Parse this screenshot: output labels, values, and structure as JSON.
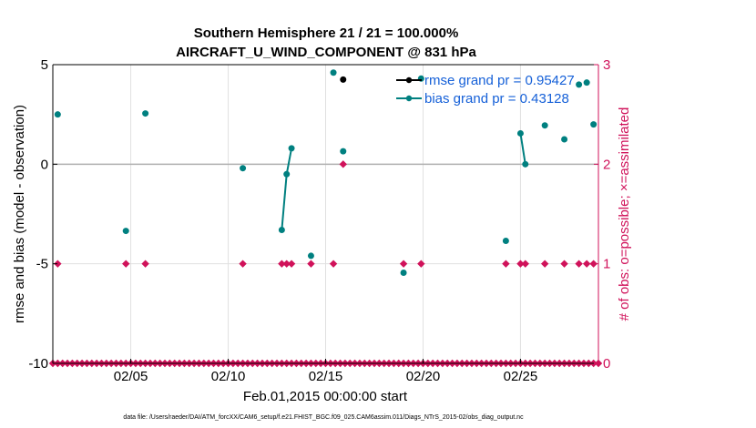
{
  "chart_data": {
    "type": "line",
    "title_line1": "Southern Hemisphere 21 / 21 = 100.000%",
    "title_line2": "AIRCRAFT_U_WIND_COMPONENT @ 831 hPa",
    "ylabel": "rmse and bias (model - observation)",
    "ylabel_right": "# of obs: o=possible; ×=assimilated",
    "xlabel": "Feb.01,2015 00:00:00 start",
    "footer": "data file: /Users/raeder/DAI/ATM_forcXX/CAM6_setup/f.e21.FHIST_BGC.f09_025.CAM6assim.011/Diags_NTrS_2015-02/obs_diag_output.nc",
    "xlim": [
      1.0,
      29.0
    ],
    "ylim": [
      -10,
      5
    ],
    "ylim_right": [
      0,
      3
    ],
    "x_ticks": [
      5,
      10,
      15,
      20,
      25
    ],
    "x_tick_labels": [
      "02/05",
      "02/10",
      "02/15",
      "02/20",
      "02/25"
    ],
    "y_ticks": [
      -10,
      -5,
      0,
      5
    ],
    "y_tick_labels": [
      "-10",
      "-5",
      "0",
      "5"
    ],
    "y_ticks_right": [
      0,
      1,
      2,
      3
    ],
    "y_tick_labels_right": [
      "0",
      "1",
      "2",
      "3"
    ],
    "zero_line": 0,
    "grid": true,
    "legend": [
      {
        "label": "rmse grand pr = 0.95427",
        "color": "#000000"
      },
      {
        "label": "bias grand pr = 0.43128",
        "color": "#008080"
      }
    ],
    "series": [
      {
        "name": "rmse",
        "color": "#000000",
        "points": [
          [
            15.9,
            4.25
          ]
        ]
      },
      {
        "name": "bias",
        "color": "#008080",
        "points": [
          [
            1.25,
            2.5
          ],
          [
            4.75,
            -3.35
          ],
          [
            5.75,
            2.55
          ],
          [
            10.75,
            -0.2
          ],
          [
            12.75,
            -3.3
          ],
          [
            13.0,
            -0.5
          ],
          [
            13.25,
            0.8
          ],
          [
            14.25,
            -4.6
          ],
          [
            15.4,
            4.6
          ],
          [
            15.9,
            0.65
          ],
          [
            19.0,
            -5.45
          ],
          [
            19.9,
            4.3
          ],
          [
            24.25,
            -3.85
          ],
          [
            25.0,
            1.55
          ],
          [
            25.25,
            0.0
          ],
          [
            26.25,
            1.95
          ],
          [
            27.25,
            1.25
          ],
          [
            28.0,
            4.0
          ],
          [
            28.4,
            4.1
          ],
          [
            28.75,
            2.0
          ]
        ]
      }
    ],
    "obs_possible_times": [
      1.25,
      4.75,
      5.75,
      10.75,
      12.75,
      13.0,
      13.25,
      14.25,
      15.4,
      15.9,
      19.0,
      19.9,
      24.25,
      25.0,
      25.25,
      26.25,
      27.25,
      28.0,
      28.4,
      28.75
    ],
    "obs_possible_counts": [
      1,
      1,
      1,
      1,
      1,
      1,
      1,
      1,
      1,
      2,
      1,
      1,
      1,
      1,
      1,
      1,
      1,
      1,
      1,
      1
    ],
    "obs_zero_start": 1.0,
    "obs_zero_step": 0.25,
    "obs_zero_count": 113,
    "colors": {
      "obs_marker": "#d0125a",
      "bias": "#008080",
      "rmse": "#000000",
      "legend_text": "#1560d8",
      "zero_line": "#b0b0b0",
      "grid": "#e0e0e0"
    }
  }
}
